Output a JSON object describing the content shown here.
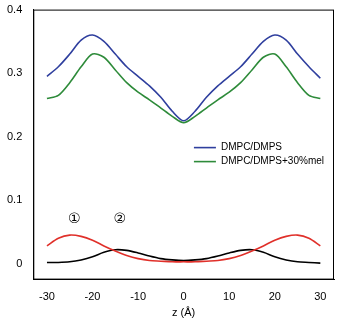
{
  "chart_data": {
    "type": "line",
    "xlabel": "z (Å)",
    "x": [
      -30,
      -27.5,
      -25,
      -22.5,
      -20,
      -17.5,
      -15,
      -12.5,
      -10,
      -7.5,
      -5,
      -2.5,
      0,
      2.5,
      5,
      7.5,
      10,
      12.5,
      15,
      17.5,
      20,
      22.5,
      25,
      27.5,
      30
    ],
    "series": [
      {
        "name": "DMPC/DMPS",
        "color": "#2f3f9e",
        "values": [
          0.295,
          0.31,
          0.33,
          0.352,
          0.36,
          0.35,
          0.33,
          0.31,
          0.295,
          0.28,
          0.262,
          0.24,
          0.225,
          0.24,
          0.262,
          0.28,
          0.295,
          0.31,
          0.33,
          0.35,
          0.36,
          0.352,
          0.33,
          0.31,
          0.292
        ]
      },
      {
        "name": "DMPC/DMPS+30%mel",
        "color": "#2e8b3a",
        "values": [
          0.26,
          0.265,
          0.285,
          0.31,
          0.33,
          0.325,
          0.305,
          0.285,
          0.27,
          0.258,
          0.245,
          0.232,
          0.222,
          0.232,
          0.245,
          0.258,
          0.27,
          0.285,
          0.305,
          0.325,
          0.33,
          0.31,
          0.285,
          0.265,
          0.26
        ]
      },
      {
        "color": "#e0302a",
        "values": [
          0.028,
          0.04,
          0.045,
          0.043,
          0.037,
          0.028,
          0.02,
          0.013,
          0.008,
          0.005,
          0.004,
          0.003,
          0.003,
          0.003,
          0.004,
          0.005,
          0.008,
          0.013,
          0.02,
          0.028,
          0.037,
          0.043,
          0.045,
          0.04,
          0.028
        ]
      },
      {
        "color": "#000000",
        "values": [
          0.002,
          0.002,
          0.003,
          0.006,
          0.011,
          0.018,
          0.022,
          0.021,
          0.017,
          0.012,
          0.008,
          0.006,
          0.005,
          0.006,
          0.008,
          0.012,
          0.017,
          0.021,
          0.022,
          0.018,
          0.011,
          0.006,
          0.003,
          0.002,
          0.001
        ]
      }
    ],
    "xlim": [
      -33,
      33
    ],
    "xticks": [
      -30,
      -20,
      -10,
      0,
      10,
      20,
      30
    ],
    "ylim": [
      -0.025,
      0.4
    ],
    "yticks": [
      0,
      0.1,
      0.2,
      0.3,
      0.4
    ],
    "grid": false,
    "legend": "center right",
    "annotations": [
      {
        "text": "①",
        "x": -24,
        "y": 0.07
      },
      {
        "text": "②",
        "x": -14,
        "y": 0.07
      }
    ]
  }
}
